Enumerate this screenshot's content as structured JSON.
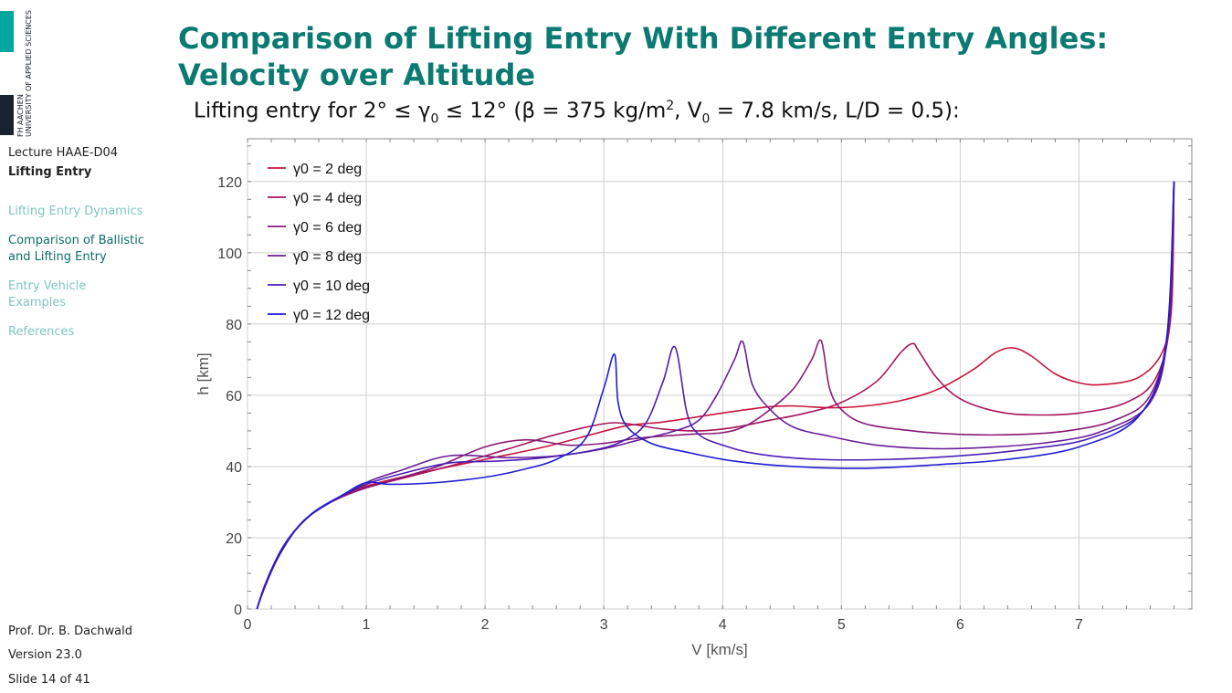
{
  "logo": {
    "line1": "FH AACHEN",
    "line2": "UNIVERSITY OF APPLIED SCIENCES",
    "teal_color": "#00a6a0",
    "dark_color": "#1a2230"
  },
  "sidebar": {
    "lecture": "Lecture HAAE-D04",
    "topic": "Lifting Entry",
    "nav": [
      {
        "label": "Lifting Entry Dynamics",
        "active": false
      },
      {
        "label": "Comparison of Ballistic\nand Lifting Entry",
        "active": true
      },
      {
        "label": "Entry Vehicle\nExamples",
        "active": false
      },
      {
        "label": "References",
        "active": false
      }
    ],
    "author": "Prof. Dr. B. Dachwald",
    "version": "Version 23.0",
    "slide": "Slide 14 of 41"
  },
  "slide": {
    "title_line1": "Comparison of Lifting Entry With Different Entry Angles:",
    "title_line2": "Velocity over Altitude",
    "subtitle_prefix": "Lifting entry for 2° ≤ γ",
    "subtitle_sub0": "0",
    "subtitle_mid": " ≤ 12° (β = 375 kg/m",
    "subtitle_sup": "2",
    "subtitle_rest": ", V",
    "subtitle_sub1": "0",
    "subtitle_end": " = 7.8 km/s, L/D = 0.5):"
  },
  "chart_data": {
    "type": "line",
    "xlabel": "V [km/s]",
    "ylabel": "h [km]",
    "xlim": [
      0,
      7.95
    ],
    "ylim": [
      0,
      132
    ],
    "xticks": [
      0,
      1,
      2,
      3,
      4,
      5,
      6,
      7
    ],
    "yticks": [
      0,
      20,
      40,
      60,
      80,
      100,
      120
    ],
    "grid": true,
    "legend": "top-left",
    "series": [
      {
        "name": "γ0 = 2 deg",
        "color": "#c8143c",
        "points": [
          [
            7.8,
            120
          ],
          [
            7.78,
            85
          ],
          [
            7.7,
            72
          ],
          [
            7.5,
            65
          ],
          [
            7.2,
            63
          ],
          [
            7.0,
            63.5
          ],
          [
            6.8,
            66
          ],
          [
            6.6,
            71
          ],
          [
            6.45,
            73.3
          ],
          [
            6.3,
            72
          ],
          [
            6.1,
            67
          ],
          [
            5.8,
            61.5
          ],
          [
            5.5,
            58.5
          ],
          [
            5.2,
            57
          ],
          [
            4.9,
            56.5
          ],
          [
            4.6,
            57
          ],
          [
            4.4,
            56.8
          ],
          [
            4.1,
            55.5
          ],
          [
            3.8,
            54
          ],
          [
            3.5,
            52.5
          ],
          [
            3.2,
            51.5
          ],
          [
            2.9,
            49
          ],
          [
            2.5,
            45.5
          ],
          [
            2.0,
            42
          ],
          [
            1.5,
            38.5
          ],
          [
            1.0,
            34.5
          ],
          [
            0.7,
            30
          ],
          [
            0.5,
            25.5
          ],
          [
            0.3,
            17.5
          ],
          [
            0.15,
            7
          ],
          [
            0.08,
            0
          ]
        ]
      },
      {
        "name": "γ0 = 4 deg",
        "color": "#a8145a",
        "points": [
          [
            7.8,
            120
          ],
          [
            7.77,
            82
          ],
          [
            7.65,
            65
          ],
          [
            7.4,
            58
          ],
          [
            7.0,
            55
          ],
          [
            6.6,
            54.5
          ],
          [
            6.3,
            55.5
          ],
          [
            6.0,
            59
          ],
          [
            5.8,
            65
          ],
          [
            5.65,
            72.5
          ],
          [
            5.6,
            74.5
          ],
          [
            5.5,
            72
          ],
          [
            5.3,
            64
          ],
          [
            5.0,
            58
          ],
          [
            4.7,
            55
          ],
          [
            4.4,
            53
          ],
          [
            4.1,
            51
          ],
          [
            3.8,
            50
          ],
          [
            3.5,
            50.5
          ],
          [
            3.2,
            52
          ],
          [
            3.0,
            52
          ],
          [
            2.6,
            49
          ],
          [
            2.2,
            45
          ],
          [
            1.8,
            41
          ],
          [
            1.4,
            37.5
          ],
          [
            1.0,
            34
          ],
          [
            0.7,
            30
          ],
          [
            0.5,
            25.5
          ],
          [
            0.3,
            17.5
          ],
          [
            0.15,
            7
          ],
          [
            0.08,
            0
          ]
        ]
      },
      {
        "name": "γ0 = 6 deg",
        "color": "#8a1a78",
        "points": [
          [
            7.8,
            120
          ],
          [
            7.76,
            80
          ],
          [
            7.6,
            60
          ],
          [
            7.3,
            53
          ],
          [
            6.9,
            50
          ],
          [
            6.5,
            49
          ],
          [
            6.0,
            49
          ],
          [
            5.6,
            50
          ],
          [
            5.2,
            52
          ],
          [
            5.0,
            56
          ],
          [
            4.9,
            62
          ],
          [
            4.83,
            75.3
          ],
          [
            4.75,
            70
          ],
          [
            4.6,
            62
          ],
          [
            4.4,
            56
          ],
          [
            4.2,
            51.5
          ],
          [
            4.0,
            49.5
          ],
          [
            3.7,
            49
          ],
          [
            3.3,
            48
          ],
          [
            3.0,
            46.5
          ],
          [
            2.7,
            46
          ],
          [
            2.35,
            47.5
          ],
          [
            2.0,
            45.5
          ],
          [
            1.6,
            40
          ],
          [
            1.2,
            36
          ],
          [
            0.9,
            33
          ],
          [
            0.6,
            28
          ],
          [
            0.4,
            22
          ],
          [
            0.25,
            14
          ],
          [
            0.12,
            4
          ],
          [
            0.08,
            0
          ]
        ]
      },
      {
        "name": "γ0 = 8 deg",
        "color": "#6a1e96",
        "points": [
          [
            7.8,
            120
          ],
          [
            7.75,
            78
          ],
          [
            7.6,
            58
          ],
          [
            7.2,
            50
          ],
          [
            6.8,
            47
          ],
          [
            6.3,
            45.5
          ],
          [
            5.8,
            45
          ],
          [
            5.3,
            46
          ],
          [
            4.9,
            48.5
          ],
          [
            4.6,
            51
          ],
          [
            4.4,
            56
          ],
          [
            4.25,
            63
          ],
          [
            4.17,
            75
          ],
          [
            4.1,
            70
          ],
          [
            3.95,
            60
          ],
          [
            3.8,
            53
          ],
          [
            3.6,
            50
          ],
          [
            3.3,
            47.5
          ],
          [
            3.0,
            45
          ],
          [
            2.6,
            43
          ],
          [
            2.2,
            42.5
          ],
          [
            1.7,
            43
          ],
          [
            1.3,
            39
          ],
          [
            1.0,
            35.5
          ],
          [
            0.7,
            30
          ],
          [
            0.45,
            24
          ],
          [
            0.25,
            14
          ],
          [
            0.12,
            4
          ],
          [
            0.08,
            0
          ]
        ]
      },
      {
        "name": "γ0 = 10 deg",
        "color": "#4a1eb4",
        "points": [
          [
            7.8,
            120
          ],
          [
            7.74,
            76
          ],
          [
            7.55,
            56
          ],
          [
            7.1,
            48
          ],
          [
            6.6,
            45
          ],
          [
            6.0,
            43
          ],
          [
            5.4,
            42
          ],
          [
            4.8,
            42
          ],
          [
            4.3,
            43.5
          ],
          [
            4.0,
            46
          ],
          [
            3.8,
            49
          ],
          [
            3.7,
            55
          ],
          [
            3.6,
            73.5
          ],
          [
            3.5,
            64
          ],
          [
            3.35,
            52
          ],
          [
            3.15,
            47
          ],
          [
            2.9,
            44.5
          ],
          [
            2.5,
            42.5
          ],
          [
            2.1,
            41.5
          ],
          [
            1.7,
            41
          ],
          [
            1.3,
            38
          ],
          [
            1.0,
            35
          ],
          [
            0.7,
            30
          ],
          [
            0.45,
            24
          ],
          [
            0.25,
            14
          ],
          [
            0.12,
            4
          ],
          [
            0.08,
            0
          ]
        ]
      },
      {
        "name": "γ0 = 12 deg",
        "color": "#1e1ed2",
        "points": [
          [
            7.8,
            120
          ],
          [
            7.73,
            74
          ],
          [
            7.5,
            54
          ],
          [
            7.0,
            45.5
          ],
          [
            6.4,
            42
          ],
          [
            5.8,
            40.5
          ],
          [
            5.2,
            39.5
          ],
          [
            4.6,
            40
          ],
          [
            4.1,
            41.5
          ],
          [
            3.7,
            44
          ],
          [
            3.4,
            46.5
          ],
          [
            3.2,
            51
          ],
          [
            3.12,
            58
          ],
          [
            3.09,
            71.5
          ],
          [
            3.0,
            62
          ],
          [
            2.85,
            48
          ],
          [
            2.6,
            42
          ],
          [
            2.3,
            39
          ],
          [
            2.0,
            37
          ],
          [
            1.6,
            35.5
          ],
          [
            1.2,
            35
          ],
          [
            1.0,
            35.5
          ],
          [
            0.8,
            32
          ],
          [
            0.55,
            27
          ],
          [
            0.35,
            20
          ],
          [
            0.2,
            11
          ],
          [
            0.1,
            2
          ],
          [
            0.08,
            0
          ]
        ]
      }
    ]
  }
}
